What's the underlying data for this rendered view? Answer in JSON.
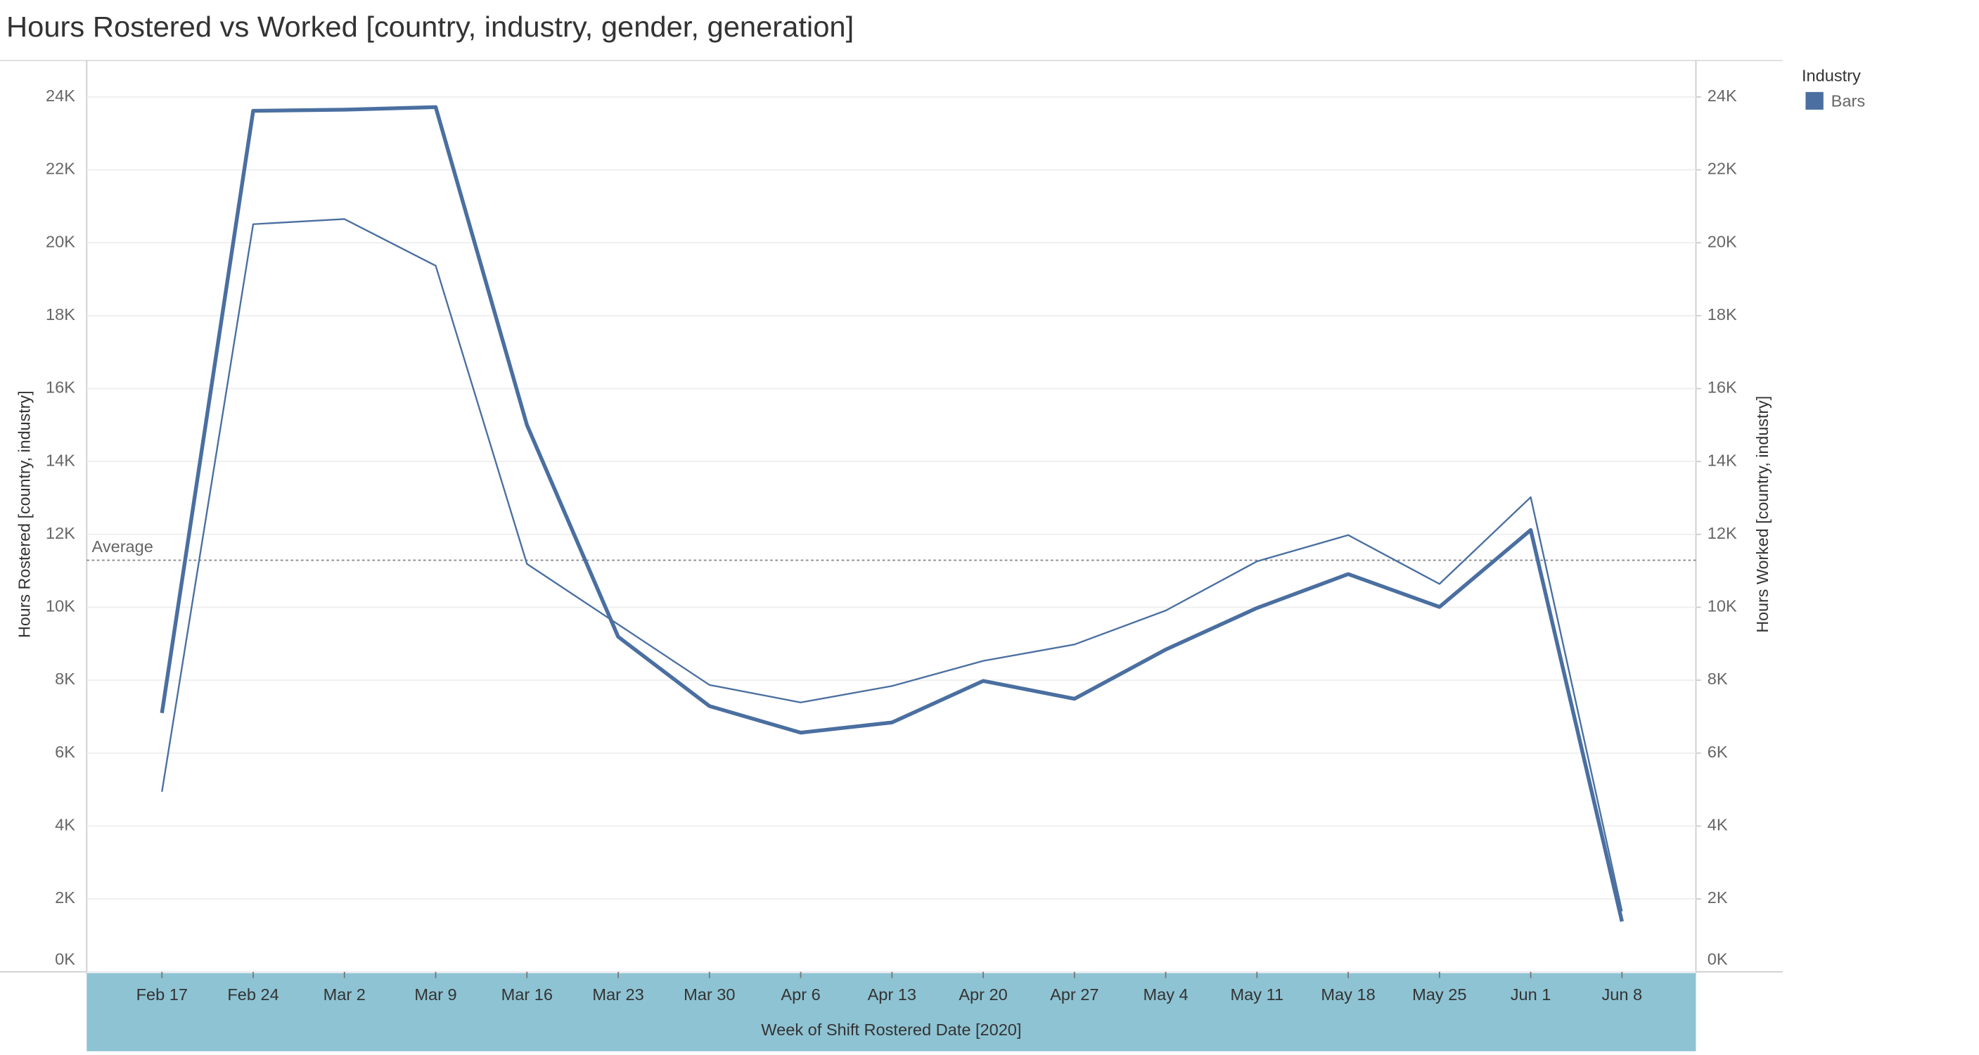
{
  "chart_data": {
    "type": "line",
    "title": "Hours Rostered vs Worked [country, industry, gender, generation]",
    "x_label": "Week of Shift Rostered Date [2020]",
    "y_label": "Hours Rostered [country, industry]",
    "y2_label": "Hours Worked [country, industry]",
    "categories": [
      "Feb 17",
      "Feb 24",
      "Mar 2",
      "Mar 9",
      "Mar 16",
      "Mar 23",
      "Mar 30",
      "Apr 6",
      "Apr 13",
      "Apr 20",
      "Apr 27",
      "May 4",
      "May 11",
      "May 18",
      "May 25",
      "Jun 1",
      "Jun 8"
    ],
    "series": [
      {
        "color": "#4a6fa0",
        "width": 3,
        "axis": "y",
        "values": [
          7100,
          23620,
          23650,
          23720,
          15000,
          9190,
          7290,
          6560,
          6840,
          7980,
          7490,
          8840,
          9980,
          10910,
          10010,
          12120,
          1380
        ]
      },
      {
        "color": "#4a6fa0",
        "width": 1.3,
        "axis": "y2",
        "values": [
          4940,
          20510,
          20650,
          19370,
          11190,
          9530,
          7870,
          7390,
          7840,
          8530,
          8980,
          9910,
          11260,
          11980,
          10640,
          13020,
          1660
        ]
      }
    ],
    "reference_line": {
      "label": "Average",
      "value": 11290
    },
    "legend": {
      "title": "Industry",
      "entries": [
        "Bars"
      ],
      "color": "#4a6fa0",
      "position": "top-right"
    },
    "ylim": [
      0,
      25000
    ],
    "y2lim": [
      0,
      25000
    ],
    "yticks": [
      {
        "value": 0,
        "label": "0K"
      },
      {
        "value": 2000,
        "label": "2K"
      },
      {
        "value": 4000,
        "label": "4K"
      },
      {
        "value": 6000,
        "label": "6K"
      },
      {
        "value": 8000,
        "label": "8K"
      },
      {
        "value": 10000,
        "label": "10K"
      },
      {
        "value": 12000,
        "label": "12K"
      },
      {
        "value": 14000,
        "label": "14K"
      },
      {
        "value": 16000,
        "label": "16K"
      },
      {
        "value": 18000,
        "label": "18K"
      },
      {
        "value": 20000,
        "label": "20K"
      },
      {
        "value": 22000,
        "label": "22K"
      },
      {
        "value": 24000,
        "label": "24K"
      }
    ],
    "y2ticks": [
      {
        "value": 0,
        "label": "0K"
      },
      {
        "value": 2000,
        "label": "2K"
      },
      {
        "value": 4000,
        "label": "4K"
      },
      {
        "value": 6000,
        "label": "6K"
      },
      {
        "value": 8000,
        "label": "8K"
      },
      {
        "value": 10000,
        "label": "10K"
      },
      {
        "value": 12000,
        "label": "12K"
      },
      {
        "value": 14000,
        "label": "14K"
      },
      {
        "value": 16000,
        "label": "16K"
      },
      {
        "value": 18000,
        "label": "18K"
      },
      {
        "value": 20000,
        "label": "20K"
      },
      {
        "value": 22000,
        "label": "22K"
      },
      {
        "value": 24000,
        "label": "24K"
      }
    ],
    "grid": true
  }
}
